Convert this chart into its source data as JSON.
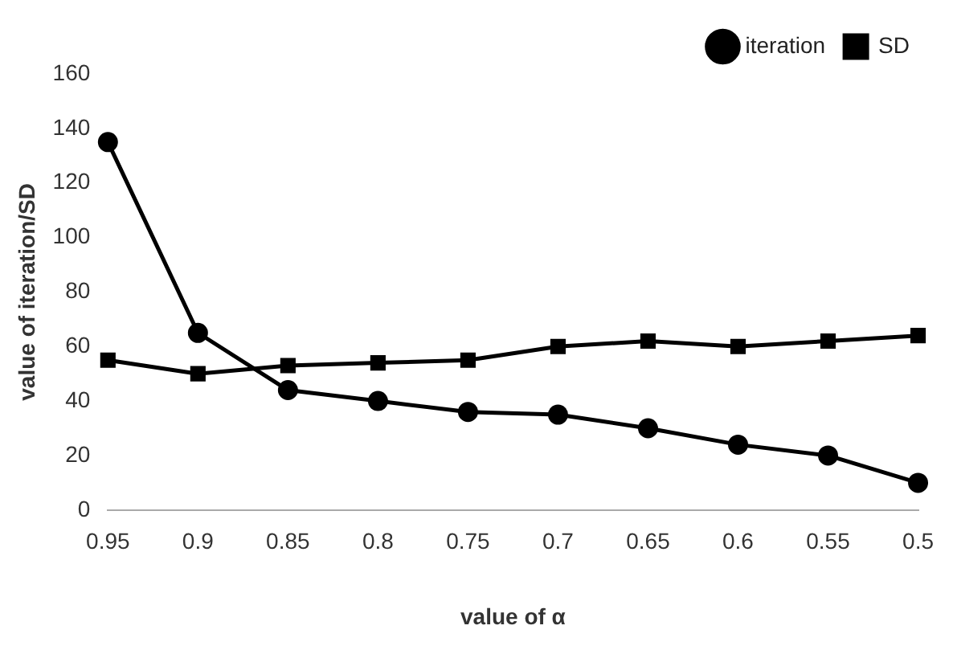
{
  "chart_data": {
    "type": "line",
    "xlabel": "value of α",
    "ylabel": "value of iteration/SD",
    "categories": [
      "0.95",
      "0.9",
      "0.85",
      "0.8",
      "0.75",
      "0.7",
      "0.65",
      "0.6",
      "0.55",
      "0.5"
    ],
    "series": [
      {
        "name": "iteration",
        "color": "#000000",
        "marker": "circle",
        "values": [
          135,
          65,
          44,
          40,
          36,
          35,
          30,
          24,
          20,
          10
        ]
      },
      {
        "name": "SD",
        "color": "#000000",
        "marker": "square",
        "values": [
          55,
          50,
          53,
          54,
          55,
          60,
          62,
          60,
          62,
          64
        ]
      }
    ],
    "ylim": [
      0,
      160
    ],
    "yticks": [
      0,
      20,
      40,
      60,
      80,
      100,
      120,
      140,
      160
    ],
    "grid": false,
    "legend": "top right",
    "line_style": "solid"
  }
}
